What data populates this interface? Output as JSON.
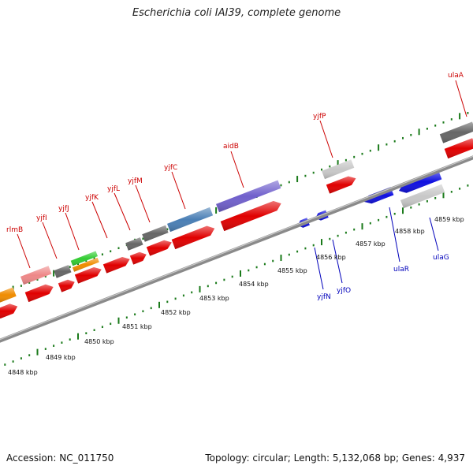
{
  "title": "Escherichia coli IAI39, complete genome",
  "accession": "Accession: NC_011750",
  "summary": "Topology: circular; Length: 5,132,068 bp; Genes: 4,937",
  "colors": {
    "top_label": "#cc0000",
    "bottom_label": "#0000bb",
    "tick": "#1a7a1a",
    "backbone": "#888888"
  },
  "scale_labels": [
    "4848 kbp",
    "4849 kbp",
    "4850 kbp",
    "4851 kbp",
    "4852 kbp",
    "4853 kbp",
    "4854 kbp",
    "4855 kbp",
    "4856 kbp",
    "4857 kbp",
    "4858 kbp",
    "4859 kbp"
  ],
  "top_genes": [
    "rlmB",
    "yjfI",
    "yjfJ",
    "yjfK",
    "yjfL",
    "yjfM",
    "yjfC",
    "aidB",
    "yjfP",
    "ulaA"
  ],
  "bottom_genes": [
    "yjfN",
    "yjfO",
    "ulaR",
    "ulaG"
  ]
}
